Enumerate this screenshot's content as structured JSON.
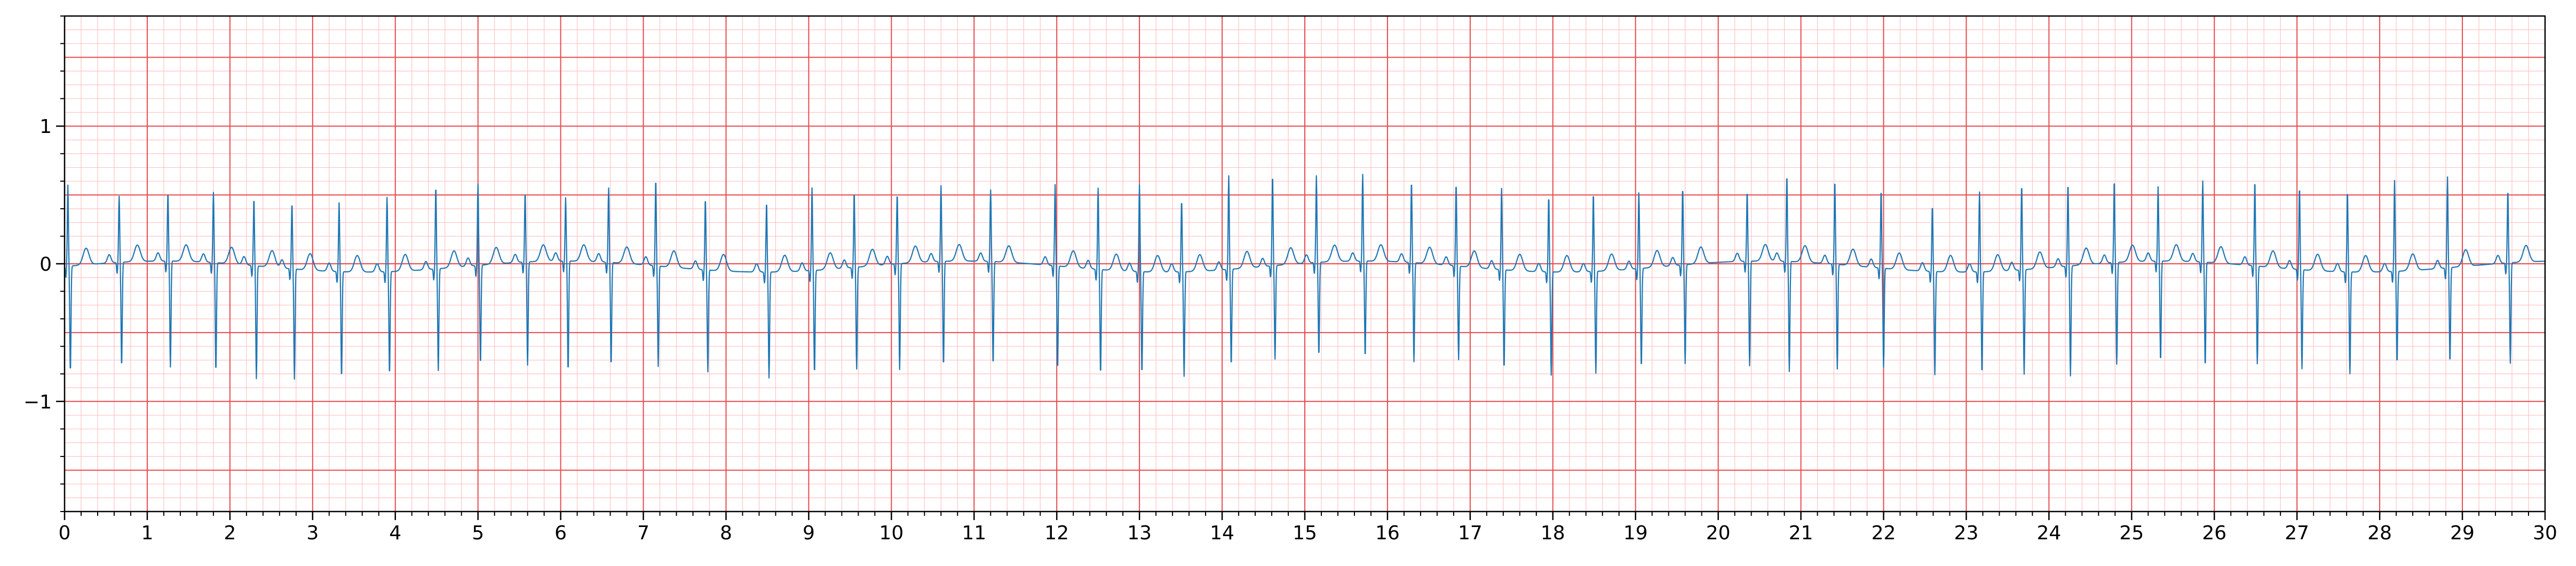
{
  "chart_data": {
    "type": "line",
    "title": "",
    "xlabel": "",
    "ylabel": "",
    "xlim": [
      0,
      30
    ],
    "ylim": [
      -1.8,
      1.8
    ],
    "grid": true,
    "x_ticks": [
      0,
      1,
      2,
      3,
      4,
      5,
      6,
      7,
      8,
      9,
      10,
      11,
      12,
      13,
      14,
      15,
      16,
      17,
      18,
      19,
      20,
      21,
      22,
      23,
      24,
      25,
      26,
      27,
      28,
      29,
      30
    ],
    "x_tick_labels": [
      "0",
      "1",
      "2",
      "3",
      "4",
      "5",
      "6",
      "7",
      "8",
      "9",
      "10",
      "11",
      "12",
      "13",
      "14",
      "15",
      "16",
      "17",
      "18",
      "19",
      "20",
      "21",
      "22",
      "23",
      "24",
      "25",
      "26",
      "27",
      "28",
      "29",
      "30"
    ],
    "y_ticks": [
      -1,
      0,
      1
    ],
    "y_tick_labels": [
      "−1",
      "0",
      "1"
    ],
    "colors": {
      "trace": "#1f77b4",
      "major_grid": "#e8494d",
      "minor_grid": "#ffc2c4",
      "axes": "#000000"
    },
    "series": [
      {
        "beats": [
          [
            0.04,
            0.55,
            -0.75
          ],
          [
            0.66,
            0.44,
            -0.74
          ],
          [
            1.25,
            0.46,
            -0.75
          ],
          [
            1.8,
            0.47,
            -0.77
          ],
          [
            2.29,
            0.45,
            -0.8
          ],
          [
            2.75,
            0.44,
            -0.78
          ],
          [
            3.32,
            0.46,
            -0.75
          ],
          [
            3.9,
            0.5,
            -0.73
          ],
          [
            4.49,
            0.56,
            -0.72
          ],
          [
            5.0,
            0.55,
            -0.7
          ],
          [
            5.57,
            0.47,
            -0.73
          ],
          [
            6.06,
            0.42,
            -0.78
          ],
          [
            6.58,
            0.5,
            -0.73
          ],
          [
            7.15,
            0.59,
            -0.71
          ],
          [
            7.75,
            0.48,
            -0.72
          ],
          [
            8.49,
            0.47,
            -0.75
          ],
          [
            9.04,
            0.56,
            -0.73
          ],
          [
            9.55,
            0.51,
            -0.72
          ],
          [
            10.07,
            0.47,
            -0.75
          ],
          [
            10.6,
            0.51,
            -0.74
          ],
          [
            11.2,
            0.48,
            -0.73
          ],
          [
            11.98,
            0.55,
            -0.73
          ],
          [
            12.5,
            0.55,
            -0.74
          ],
          [
            13.0,
            0.59,
            -0.72
          ],
          [
            13.51,
            0.48,
            -0.74
          ],
          [
            14.08,
            0.64,
            -0.68
          ],
          [
            14.61,
            0.62,
            -0.66
          ],
          [
            15.14,
            0.59,
            -0.66
          ],
          [
            15.7,
            0.59,
            -0.68
          ],
          [
            16.29,
            0.55,
            -0.7
          ],
          [
            16.83,
            0.56,
            -0.66
          ],
          [
            17.38,
            0.55,
            -0.7
          ],
          [
            17.95,
            0.51,
            -0.73
          ],
          [
            18.49,
            0.53,
            -0.72
          ],
          [
            19.04,
            0.51,
            -0.7
          ],
          [
            19.57,
            0.52,
            -0.7
          ],
          [
            20.35,
            0.47,
            -0.74
          ],
          [
            20.83,
            0.59,
            -0.78
          ],
          [
            21.41,
            0.57,
            -0.74
          ],
          [
            21.97,
            0.53,
            -0.7
          ],
          [
            22.59,
            0.44,
            -0.73
          ],
          [
            23.16,
            0.54,
            -0.72
          ],
          [
            23.67,
            0.58,
            -0.74
          ],
          [
            24.23,
            0.56,
            -0.78
          ],
          [
            24.79,
            0.56,
            -0.72
          ],
          [
            25.32,
            0.5,
            -0.71
          ],
          [
            25.86,
            0.55,
            -0.74
          ],
          [
            26.49,
            0.58,
            -0.69
          ],
          [
            27.03,
            0.56,
            -0.7
          ],
          [
            27.61,
            0.55,
            -0.72
          ],
          [
            28.18,
            0.62,
            -0.65
          ],
          [
            28.82,
            0.62,
            -0.67
          ],
          [
            29.55,
            0.49,
            -0.71
          ]
        ]
      }
    ]
  }
}
